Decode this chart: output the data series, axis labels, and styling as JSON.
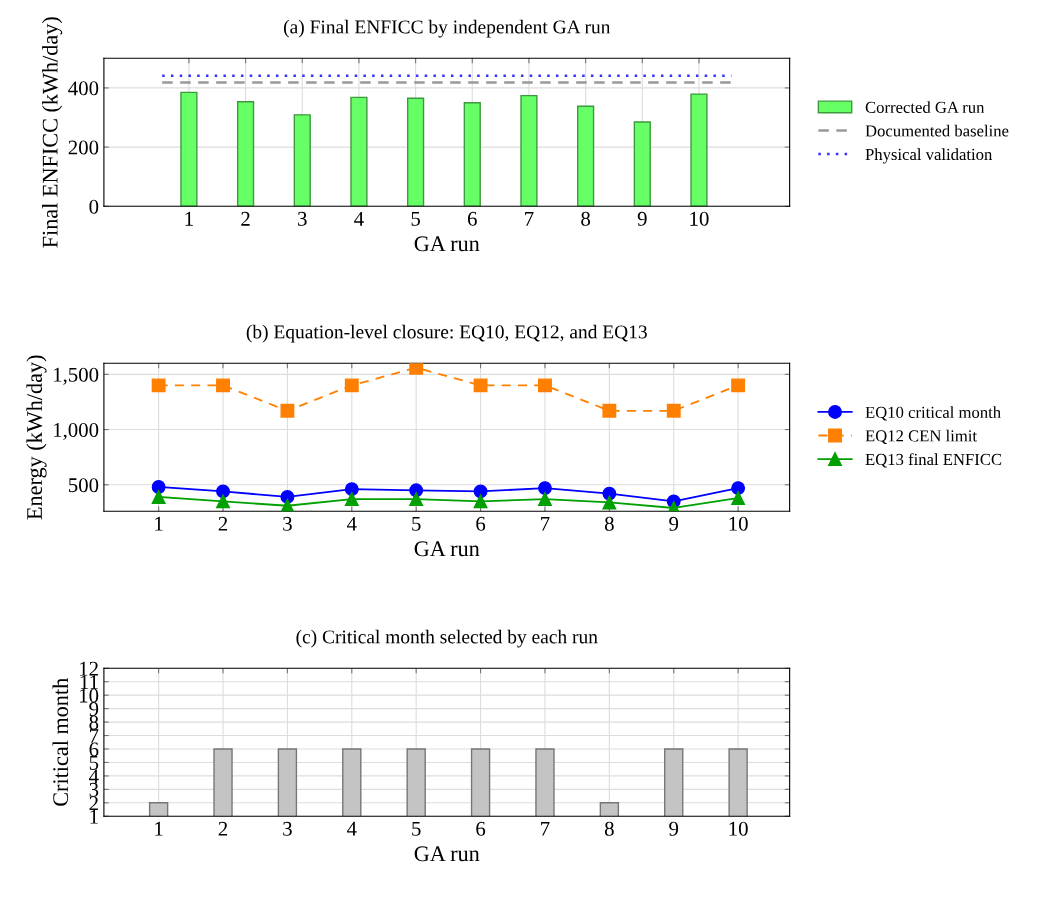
{
  "chart_data": [
    {
      "type": "bar",
      "title": "(a) Final ENFICC by independent GA run",
      "xlabel": "GA run",
      "ylabel": "Final ENFICC (kWh/day)",
      "x": [
        1,
        2,
        3,
        4,
        5,
        6,
        7,
        8,
        9,
        10
      ],
      "xlim": [
        -0.5,
        11.6
      ],
      "xticks": [
        1,
        2,
        3,
        4,
        5,
        6,
        7,
        8,
        9,
        10
      ],
      "ylim": [
        0,
        500
      ],
      "yticks": [
        0,
        200,
        400
      ],
      "grid": true,
      "legend": "right",
      "series": [
        {
          "name": "Corrected GA run",
          "color": "#66ff66",
          "values": [
            385,
            353,
            309,
            368,
            365,
            350,
            374,
            338,
            285,
            379
          ]
        }
      ],
      "ref_lines": [
        {
          "axis": "y",
          "value": 418,
          "label": "Documented baseline",
          "color": "#999999",
          "line_style": "dashed"
        },
        {
          "axis": "y",
          "value": 441,
          "label": "Physical validation",
          "color": "#3333ff",
          "line_style": "dotted"
        }
      ]
    },
    {
      "type": "line",
      "title": "(b) Equation-level closure: EQ10, EQ12, and EQ13",
      "xlabel": "GA run",
      "ylabel": "Energy (kWh/day)",
      "x": [
        1,
        2,
        3,
        4,
        5,
        6,
        7,
        8,
        9,
        10
      ],
      "xlim": [
        0.15,
        10.8
      ],
      "xticks": [
        1,
        2,
        3,
        4,
        5,
        6,
        7,
        8,
        9,
        10
      ],
      "ylim": [
        260,
        1600
      ],
      "yticks": [
        {
          "value": 500,
          "label": "500"
        },
        {
          "value": 1000,
          "label": "1,000"
        },
        {
          "value": 1500,
          "label": "1,500"
        }
      ],
      "grid": true,
      "legend": "right",
      "series": [
        {
          "name": "EQ10 critical month",
          "color": "#0000ff",
          "marker": "circle",
          "line_style": "solid",
          "values": [
            480,
            440,
            390,
            460,
            450,
            440,
            470,
            420,
            350,
            470
          ]
        },
        {
          "name": "EQ12 CEN limit",
          "color": "#ff8000",
          "marker": "square",
          "line_style": "dashed",
          "values": [
            1400,
            1400,
            1170,
            1400,
            1560,
            1400,
            1400,
            1170,
            1170,
            1400
          ]
        },
        {
          "name": "EQ13 final ENFICC",
          "color": "#00a000",
          "marker": "triangle",
          "line_style": "solid",
          "values": [
            390,
            350,
            310,
            370,
            370,
            350,
            370,
            340,
            290,
            380
          ]
        }
      ]
    },
    {
      "type": "bar",
      "title": "(c) Critical month selected by each run",
      "xlabel": "GA run",
      "ylabel": "Critical month",
      "x": [
        1,
        2,
        3,
        4,
        5,
        6,
        7,
        8,
        9,
        10
      ],
      "xlim": [
        0.15,
        10.8
      ],
      "xticks": [
        1,
        2,
        3,
        4,
        5,
        6,
        7,
        8,
        9,
        10
      ],
      "ylim": [
        1,
        12
      ],
      "yticks": [
        1,
        2,
        3,
        4,
        5,
        6,
        7,
        8,
        9,
        10,
        11,
        12
      ],
      "grid": true,
      "series": [
        {
          "color": "#c4c4c4",
          "values": [
            2,
            6,
            6,
            6,
            6,
            6,
            6,
            2,
            6,
            6
          ]
        }
      ]
    }
  ]
}
